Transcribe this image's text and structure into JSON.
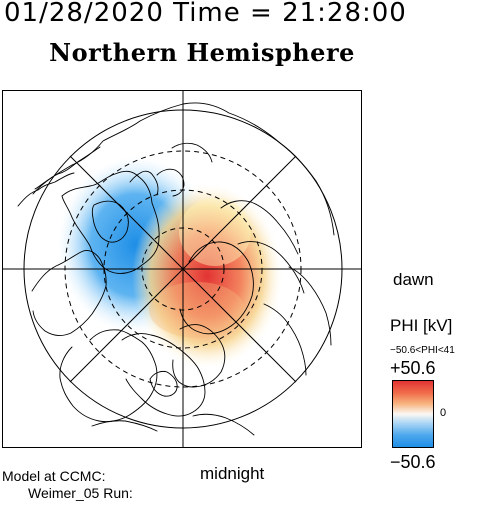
{
  "header": {
    "datetime": "01/28/2020 Time = 21:28:00",
    "title": "Northern Hemisphere"
  },
  "map": {
    "orientation_labels": {
      "dawn": "dawn",
      "midnight": "midnight"
    },
    "projection": "polar",
    "features": [
      "coastlines",
      "latitude-circles",
      "meridian-lines",
      "potential-pattern"
    ]
  },
  "colorbar": {
    "title": "PHI [kV]",
    "range_text": "−50.6<PHI<41",
    "max_label": "+50.6",
    "zero_label": "0",
    "min_label": "−50.6",
    "colors": {
      "positive": "#e23333",
      "neutral": "#fbf7f2",
      "negative": "#1e8ee6"
    }
  },
  "footer": {
    "model": "Model at CCMC:",
    "run": "Weimer_05 Run:"
  }
}
